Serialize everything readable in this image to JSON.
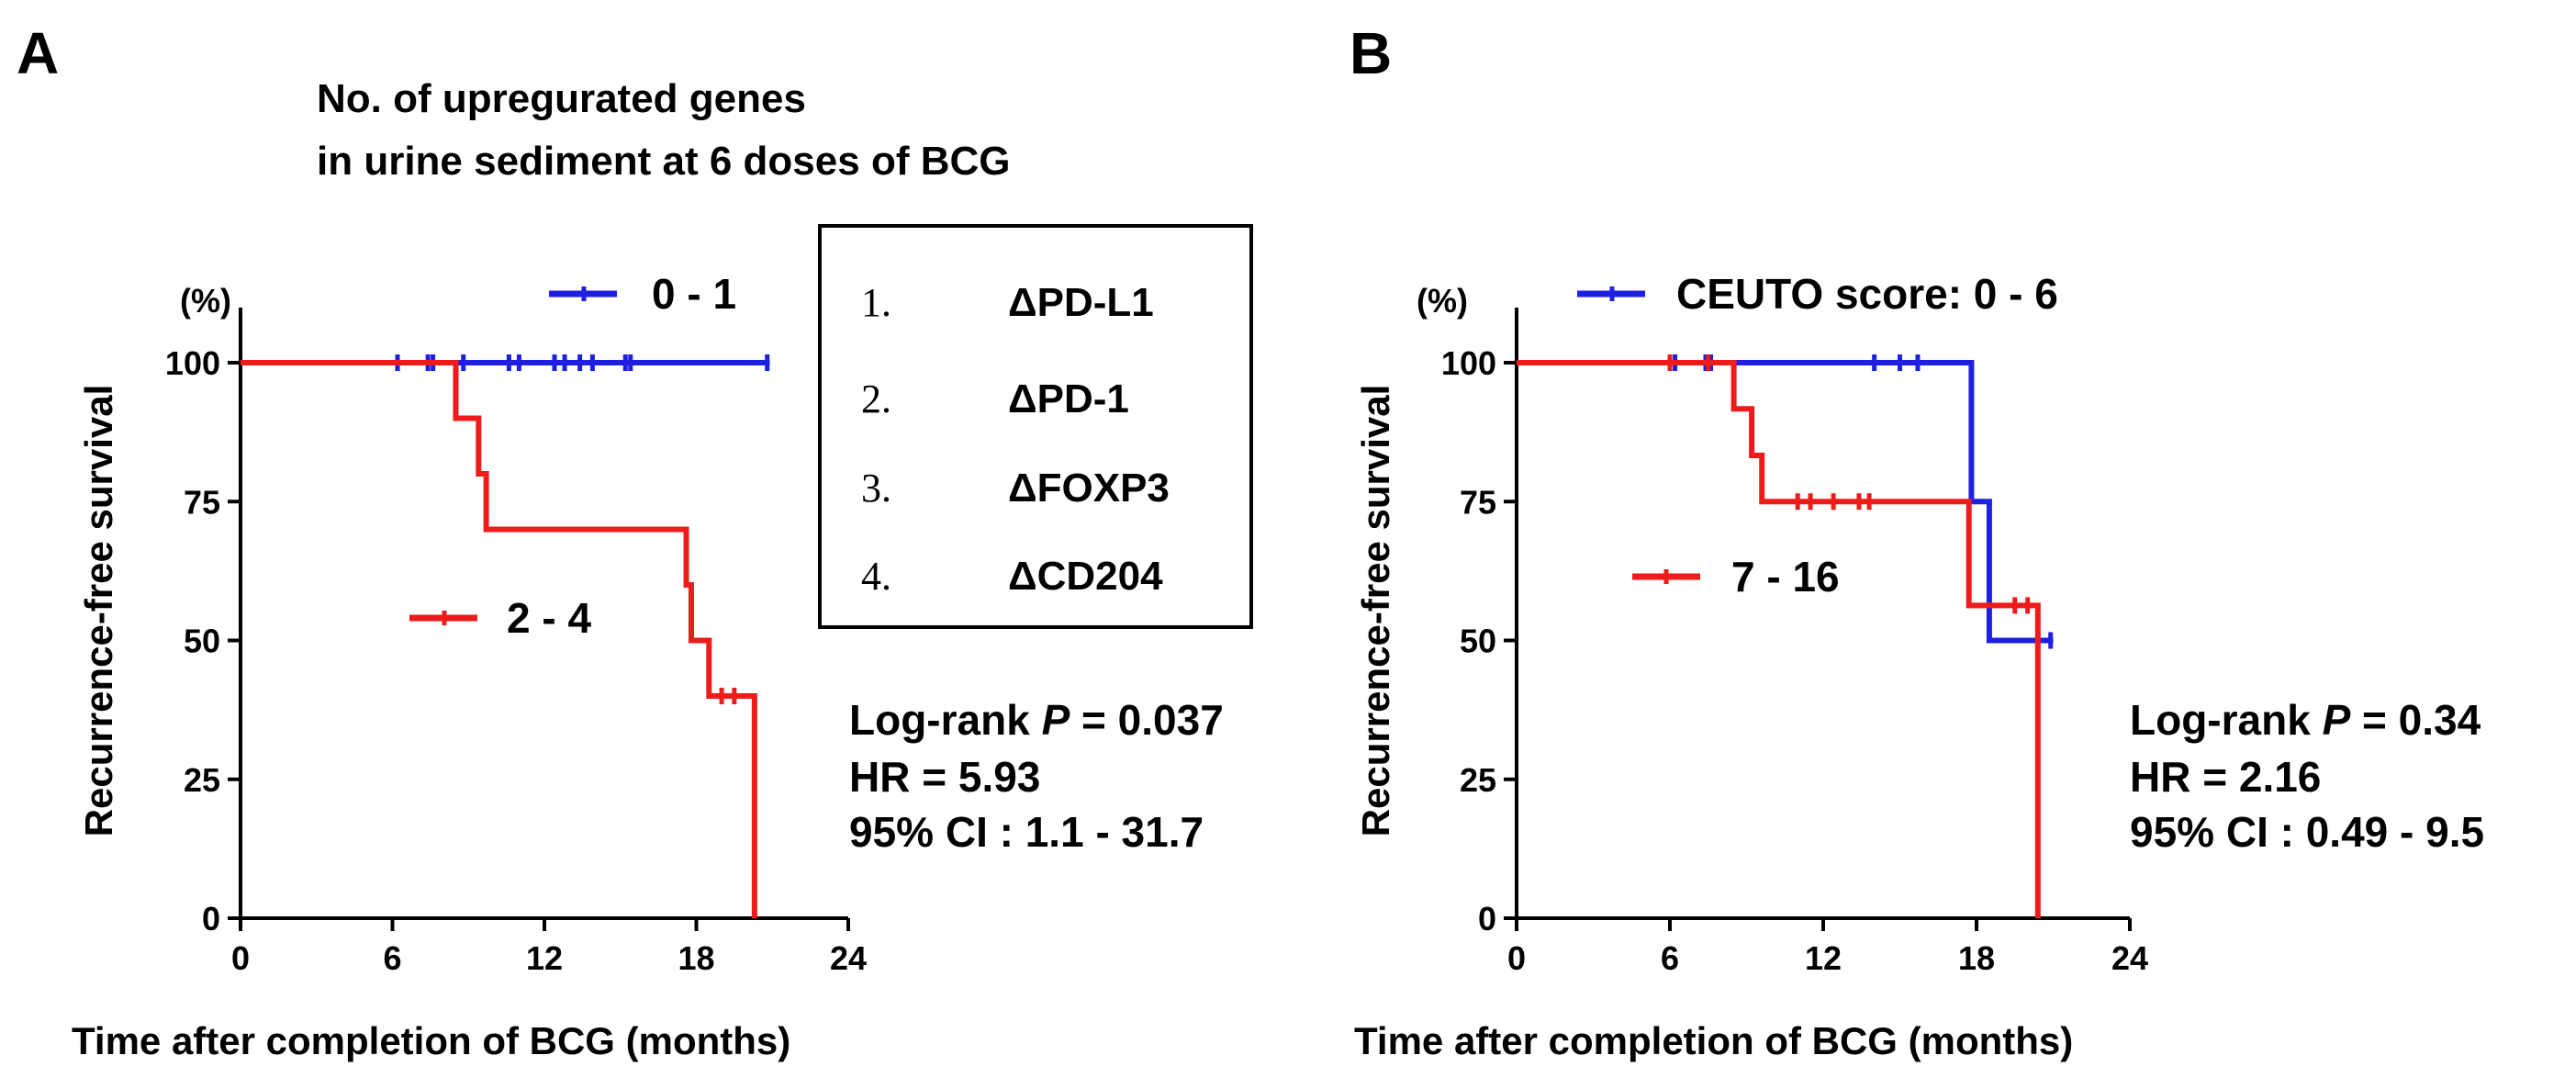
{
  "chart_data": [
    {
      "type": "line",
      "step": true,
      "panel": "A",
      "title_lines": [
        "No. of upregurated genes",
        "in urine sediment  at 6 doses of BCG"
      ],
      "xlabel": "Time after completion of BCG (months)",
      "ylabel": "Recurrence-free survival",
      "y_unit": "(%)",
      "xlim": [
        0,
        24
      ],
      "ylim": [
        0,
        100
      ],
      "x_ticks": [
        0,
        6,
        12,
        18,
        24
      ],
      "y_ticks": [
        0,
        25,
        50,
        75,
        100
      ],
      "series": [
        {
          "name": "0 - 1",
          "color": "#1f1fe0",
          "steps": [
            [
              0,
              100
            ],
            [
              20.9,
              100
            ]
          ],
          "censored": [
            [
              6.2,
              100
            ],
            [
              7.4,
              100
            ],
            [
              7.6,
              100
            ],
            [
              8.8,
              100
            ],
            [
              10.6,
              100
            ],
            [
              11.0,
              100
            ],
            [
              12.4,
              100
            ],
            [
              12.8,
              100
            ],
            [
              13.4,
              100
            ],
            [
              13.9,
              100
            ],
            [
              15.2,
              100
            ],
            [
              15.4,
              100
            ],
            [
              20.8,
              100
            ]
          ]
        },
        {
          "name": "2 - 4",
          "color": "#ee1b1b",
          "steps": [
            [
              0,
              100
            ],
            [
              8.5,
              100
            ],
            [
              8.5,
              90
            ],
            [
              9.4,
              90
            ],
            [
              9.4,
              80
            ],
            [
              9.7,
              80
            ],
            [
              9.7,
              70
            ],
            [
              17.6,
              70
            ],
            [
              17.6,
              60
            ],
            [
              17.8,
              60
            ],
            [
              17.8,
              50
            ],
            [
              18.5,
              50
            ],
            [
              18.5,
              40
            ],
            [
              20.3,
              40
            ],
            [
              20.3,
              0
            ]
          ],
          "censored": [
            [
              19.0,
              40
            ],
            [
              19.5,
              40
            ]
          ]
        }
      ],
      "legend": [
        "0 - 1",
        "2 - 4"
      ],
      "stats": {
        "pvalue_prefix": "Log-rank ",
        "pvalue_p": "P",
        "pvalue_value": " = 0.037",
        "hr": "HR = 5.93",
        "ci": "95% CI : 1.1 - 31.7"
      },
      "genes_box": [
        {
          "num": "1.",
          "gene": "ΔPD-L1"
        },
        {
          "num": "2.",
          "gene": "ΔPD-1"
        },
        {
          "num": "3.",
          "gene": "ΔFOXP3"
        },
        {
          "num": "4.",
          "gene": "ΔCD204"
        }
      ]
    },
    {
      "type": "line",
      "step": true,
      "panel": "B",
      "xlabel": "Time after completion of BCG (months)",
      "ylabel": "Recurrence-free survival",
      "y_unit": "(%)",
      "xlim": [
        0,
        24
      ],
      "ylim": [
        0,
        100
      ],
      "x_ticks": [
        0,
        6,
        12,
        18,
        24
      ],
      "y_ticks": [
        0,
        25,
        50,
        75,
        100
      ],
      "series": [
        {
          "name": "CEUTO score: 0 - 6",
          "color": "#1f1fe0",
          "steps": [
            [
              0,
              100
            ],
            [
              17.8,
              100
            ],
            [
              17.8,
              75
            ],
            [
              18.5,
              75
            ],
            [
              18.5,
              50
            ],
            [
              21.0,
              50
            ]
          ],
          "censored": [
            [
              6.2,
              100
            ],
            [
              7.4,
              100
            ],
            [
              7.6,
              100
            ],
            [
              14.0,
              100
            ],
            [
              15.0,
              100
            ],
            [
              15.7,
              100
            ],
            [
              20.9,
              50
            ]
          ]
        },
        {
          "name": "7 - 16",
          "color": "#ee1b1b",
          "steps": [
            [
              0,
              100
            ],
            [
              8.5,
              100
            ],
            [
              8.5,
              91.7
            ],
            [
              9.2,
              91.7
            ],
            [
              9.2,
              83.3
            ],
            [
              9.6,
              83.3
            ],
            [
              9.6,
              75
            ],
            [
              17.7,
              75
            ],
            [
              17.7,
              56.3
            ],
            [
              20.4,
              56.3
            ],
            [
              20.4,
              0
            ]
          ],
          "censored": [
            [
              6.0,
              100
            ],
            [
              7.5,
              100
            ],
            [
              11.0,
              75
            ],
            [
              11.5,
              75
            ],
            [
              12.4,
              75
            ],
            [
              13.4,
              75
            ],
            [
              13.8,
              75
            ],
            [
              19.5,
              56.3
            ],
            [
              20.0,
              56.3
            ]
          ]
        }
      ],
      "legend": [
        "CEUTO score: 0 - 6",
        "7 - 16"
      ],
      "stats": {
        "pvalue_prefix": "Log-rank ",
        "pvalue_p": "P",
        "pvalue_value": " = 0.34",
        "hr": "HR = 2.16",
        "ci": "95% CI : 0.49 - 9.5"
      }
    }
  ]
}
